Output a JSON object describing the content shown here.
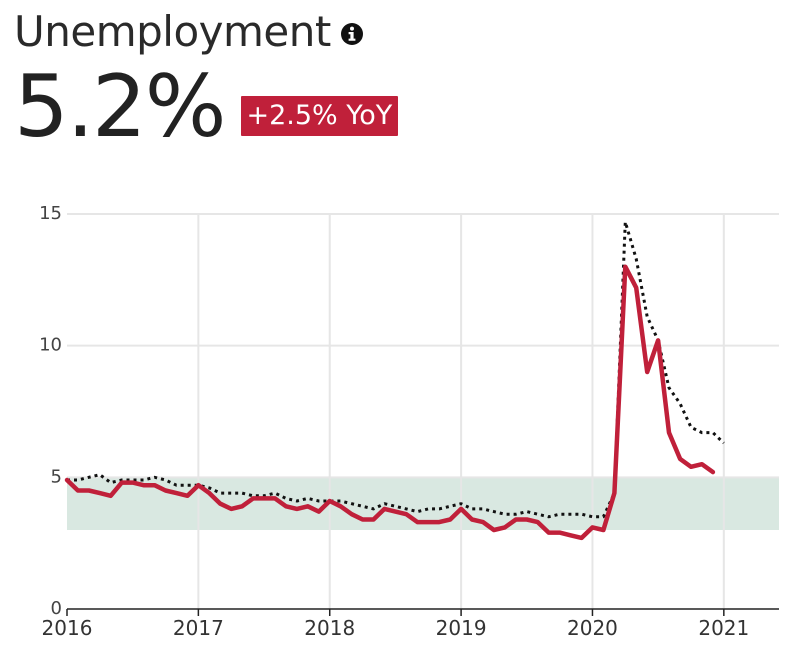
{
  "header": {
    "title": "Unemployment",
    "info_icon": "info-icon",
    "value": "5.2%",
    "change_badge": "+2.5% YoY",
    "badge_color": "#c0203a"
  },
  "colors": {
    "primary_line": "#c0203a",
    "comparison_line": "#111111",
    "band": "#d9e8e1",
    "grid": "#e6e6e6"
  },
  "chart_data": {
    "type": "line",
    "title": "",
    "xlabel": "",
    "ylabel": "",
    "xlim": [
      2016.0,
      2021.42
    ],
    "ylim": [
      0,
      15
    ],
    "x_ticks": [
      "2016",
      "2017",
      "2018",
      "2019",
      "2020",
      "2021"
    ],
    "y_ticks": [
      "0",
      "5",
      "10",
      "15"
    ],
    "grid": true,
    "shaded_band": {
      "y_min": 3.0,
      "y_max": 5.0
    },
    "series": [
      {
        "style": "solid",
        "x": [
          2016.0,
          2016.083,
          2016.167,
          2016.25,
          2016.333,
          2016.417,
          2016.5,
          2016.583,
          2016.667,
          2016.75,
          2016.833,
          2016.917,
          2017.0,
          2017.083,
          2017.167,
          2017.25,
          2017.333,
          2017.417,
          2017.5,
          2017.583,
          2017.667,
          2017.75,
          2017.833,
          2017.917,
          2018.0,
          2018.083,
          2018.167,
          2018.25,
          2018.333,
          2018.417,
          2018.5,
          2018.583,
          2018.667,
          2018.75,
          2018.833,
          2018.917,
          2019.0,
          2019.083,
          2019.167,
          2019.25,
          2019.333,
          2019.417,
          2019.5,
          2019.583,
          2019.667,
          2019.75,
          2019.833,
          2019.917,
          2020.0,
          2020.083,
          2020.167,
          2020.25,
          2020.333,
          2020.417,
          2020.5,
          2020.583,
          2020.667,
          2020.75,
          2020.833,
          2020.917
        ],
        "values": [
          4.9,
          4.5,
          4.5,
          4.4,
          4.3,
          4.8,
          4.8,
          4.7,
          4.7,
          4.5,
          4.4,
          4.3,
          4.7,
          4.4,
          4.0,
          3.8,
          3.9,
          4.2,
          4.2,
          4.2,
          3.9,
          3.8,
          3.9,
          3.7,
          4.1,
          3.9,
          3.6,
          3.4,
          3.4,
          3.8,
          3.7,
          3.6,
          3.3,
          3.3,
          3.3,
          3.4,
          3.8,
          3.4,
          3.3,
          3.0,
          3.1,
          3.4,
          3.4,
          3.3,
          2.9,
          2.9,
          2.8,
          2.7,
          3.1,
          3.0,
          4.4,
          13.0,
          12.2,
          9.0,
          10.2,
          6.7,
          5.7,
          5.4,
          5.5,
          5.2
        ]
      },
      {
        "style": "dotted",
        "x": [
          2016.0,
          2016.083,
          2016.167,
          2016.25,
          2016.333,
          2016.417,
          2016.5,
          2016.583,
          2016.667,
          2016.75,
          2016.833,
          2016.917,
          2017.0,
          2017.083,
          2017.167,
          2017.25,
          2017.333,
          2017.417,
          2017.5,
          2017.583,
          2017.667,
          2017.75,
          2017.833,
          2017.917,
          2018.0,
          2018.083,
          2018.167,
          2018.25,
          2018.333,
          2018.417,
          2018.5,
          2018.583,
          2018.667,
          2018.75,
          2018.833,
          2018.917,
          2019.0,
          2019.083,
          2019.167,
          2019.25,
          2019.333,
          2019.417,
          2019.5,
          2019.583,
          2019.667,
          2019.75,
          2019.833,
          2019.917,
          2020.0,
          2020.083,
          2020.167,
          2020.25,
          2020.333,
          2020.417,
          2020.5,
          2020.583,
          2020.667,
          2020.75,
          2020.833,
          2020.917,
          2021.0
        ],
        "values": [
          4.9,
          4.9,
          5.0,
          5.1,
          4.8,
          4.9,
          4.9,
          4.9,
          5.0,
          4.9,
          4.7,
          4.7,
          4.7,
          4.6,
          4.4,
          4.4,
          4.4,
          4.3,
          4.3,
          4.4,
          4.2,
          4.1,
          4.2,
          4.1,
          4.1,
          4.1,
          4.0,
          3.9,
          3.8,
          4.0,
          3.9,
          3.8,
          3.7,
          3.8,
          3.8,
          3.9,
          4.0,
          3.8,
          3.8,
          3.7,
          3.6,
          3.6,
          3.7,
          3.6,
          3.5,
          3.6,
          3.6,
          3.6,
          3.5,
          3.5,
          4.4,
          14.7,
          13.3,
          11.1,
          10.2,
          8.4,
          7.8,
          6.9,
          6.7,
          6.7,
          6.3
        ]
      }
    ]
  }
}
